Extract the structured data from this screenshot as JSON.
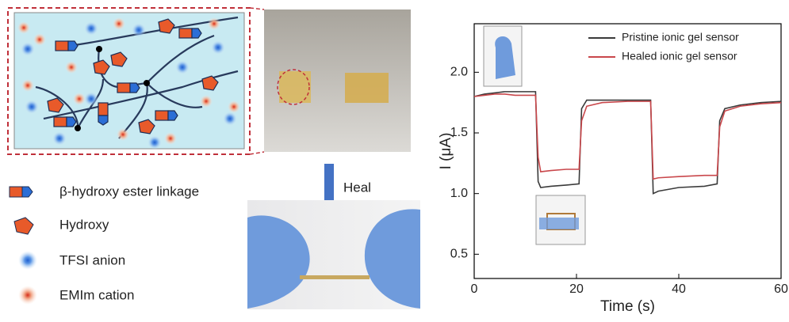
{
  "legend_items": [
    "β-hydroxy ester linkage",
    "Hydroxy",
    "TFSI anion",
    "EMIm cation"
  ],
  "heal_label": "Heal",
  "chart_data": {
    "type": "line",
    "xlabel": "Time (s)",
    "ylabel": "I (μA)",
    "x": [
      0,
      2,
      4,
      6,
      8,
      10,
      12,
      12.5,
      13,
      15,
      18,
      20.5,
      21,
      22,
      25,
      30,
      34.5,
      35,
      36,
      40,
      45,
      47.5,
      48,
      49,
      52,
      56,
      60
    ],
    "series": [
      {
        "name": "Pristine ionic gel sensor",
        "color": "#3a3a3a",
        "values": [
          1.8,
          1.82,
          1.83,
          1.84,
          1.84,
          1.84,
          1.84,
          1.1,
          1.05,
          1.06,
          1.07,
          1.08,
          1.7,
          1.77,
          1.77,
          1.77,
          1.77,
          1.0,
          1.02,
          1.05,
          1.06,
          1.08,
          1.6,
          1.7,
          1.73,
          1.75,
          1.76
        ]
      },
      {
        "name": "Healed ionic gel sensor",
        "color": "#c9474b",
        "values": [
          1.8,
          1.81,
          1.82,
          1.82,
          1.81,
          1.81,
          1.81,
          1.3,
          1.18,
          1.19,
          1.2,
          1.2,
          1.6,
          1.72,
          1.75,
          1.76,
          1.76,
          1.12,
          1.13,
          1.14,
          1.15,
          1.15,
          1.55,
          1.68,
          1.72,
          1.74,
          1.75
        ]
      }
    ],
    "xlim": [
      0,
      60
    ],
    "xticks": [
      0,
      20,
      40,
      60
    ],
    "ylim": [
      0.3,
      2.4
    ],
    "yticks": [
      0.5,
      {
        "value": 1,
        "label": "1.0"
      },
      1.5,
      {
        "value": 2,
        "label": "2.0"
      }
    ],
    "legend": "upper right"
  }
}
